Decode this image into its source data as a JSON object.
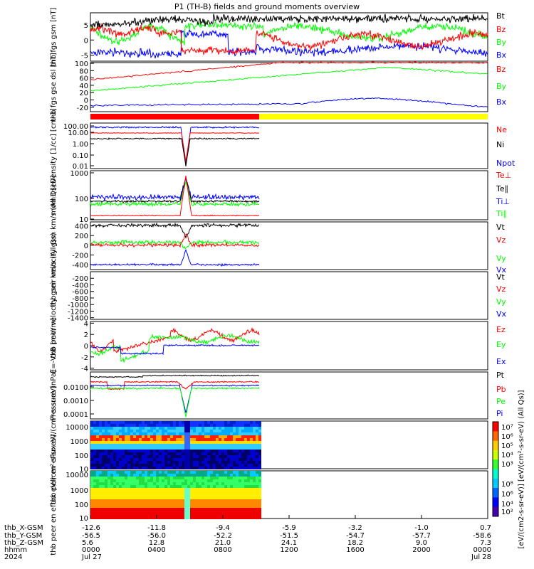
{
  "title": "P1 (TH-B) fields and ground moments overview",
  "colors": {
    "black": "#000000",
    "red": "#ff0000",
    "green": "#00ff00",
    "blue": "#0000ff",
    "yellow": "#ffff00"
  },
  "chart_data": [
    {
      "id": "fgs",
      "type": "line",
      "ylabel": "thb fgs gsm [nT]",
      "ylim": [
        -7,
        9
      ],
      "ticks": [
        5,
        0,
        -5
      ],
      "series": [
        {
          "name": "Bt",
          "color": "#000000"
        },
        {
          "name": "Bz",
          "color": "#ff0000"
        },
        {
          "name": "By",
          "color": "#00ff00"
        },
        {
          "name": "Bx",
          "color": "#0000ff"
        }
      ]
    },
    {
      "id": "fgs_dsl",
      "type": "line",
      "ylabel": "thb fgs gse dsl [nT]",
      "ylim": [
        -32,
        102
      ],
      "ticks": [
        100,
        80,
        60,
        40,
        20,
        0,
        -20
      ],
      "series": [
        {
          "name": "Bz",
          "color": "#ff0000"
        },
        {
          "name": "By",
          "color": "#00ff00"
        },
        {
          "name": "Bx",
          "color": "#0000ff"
        }
      ]
    },
    {
      "id": "density",
      "type": "line",
      "ylabel": "Density [1/cc] [cm-3]",
      "scale": "log",
      "ticks": [
        "100.00",
        "10.00",
        "1.00",
        "0.10",
        "0.01"
      ],
      "series": [
        {
          "name": "Ne",
          "color": "#ff0000"
        },
        {
          "name": "Ni",
          "color": "#000000"
        },
        {
          "name": "Npot",
          "color": "#0000ff"
        }
      ]
    },
    {
      "id": "temp",
      "type": "line",
      "ylabel": "mom3 [eV]",
      "scale": "log",
      "ticks": [
        "1000",
        "100",
        "10"
      ],
      "series": [
        {
          "name": "Te⊥",
          "color": "#ff0000"
        },
        {
          "name": "Te∥",
          "color": "#000000"
        },
        {
          "name": "Ti⊥",
          "color": "#0000ff"
        },
        {
          "name": "Ti∥",
          "color": "#00ff00"
        }
      ]
    },
    {
      "id": "peir_vel",
      "type": "line",
      "ylabel": "thb peir velocity gsm km/s (All Qs)",
      "ylim": [
        -500,
        480
      ],
      "ticks": [
        400,
        200,
        0,
        -200,
        -400
      ],
      "series": [
        {
          "name": "Vt",
          "color": "#000000"
        },
        {
          "name": "Vz",
          "color": "#ff0000"
        },
        {
          "name": "Vy",
          "color": "#00ff00"
        },
        {
          "name": "Vx",
          "color": "#0000ff"
        }
      ]
    },
    {
      "id": "peer_vel",
      "type": "line",
      "ylabel": "thb peer velocity gsm km/s (All Qs)",
      "ylim": [
        -1450,
        0
      ],
      "ticks": [
        -200,
        -400,
        -600,
        -800,
        -1000,
        -1200,
        -1400
      ],
      "series": [
        {
          "name": "Vt",
          "color": "#000000"
        },
        {
          "name": "Vz",
          "color": "#ff0000"
        },
        {
          "name": "Vy",
          "color": "#00ff00"
        },
        {
          "name": "Vx",
          "color": "#0000ff"
        }
      ]
    },
    {
      "id": "efield",
      "type": "line",
      "ylabel": "E=-VxB [mV/m]",
      "ylim": [
        -4.3,
        4.3
      ],
      "ticks": [
        4,
        2,
        0,
        -2,
        -4
      ],
      "series": [
        {
          "name": "Ez",
          "color": "#ff0000"
        },
        {
          "name": "Ey",
          "color": "#00ff00"
        },
        {
          "name": "Ex",
          "color": "#0000ff"
        }
      ]
    },
    {
      "id": "pressure",
      "type": "line",
      "ylabel": "Pressure [nPa]",
      "scale": "log",
      "ticks": [
        "0.0100",
        "0.0010",
        "0.0001"
      ],
      "series": [
        {
          "name": "Pt",
          "color": "#000000"
        },
        {
          "name": "Pb",
          "color": "#ff0000"
        },
        {
          "name": "Pe",
          "color": "#00ff00"
        },
        {
          "name": "Pi",
          "color": "#0000ff"
        }
      ]
    },
    {
      "id": "peir_spec",
      "type": "heatmap",
      "ylabel": "thb peir en eflux eV/(cm²-s-sr-eV)",
      "scale": "log",
      "ticks": [
        "10000",
        "1000",
        "100",
        "10"
      ]
    },
    {
      "id": "peer_spec",
      "type": "heatmap",
      "ylabel": "thb peer en eflux eV/(cm²-s-sr-eV)",
      "scale": "log",
      "ticks": [
        "10000",
        "1000",
        "100",
        "10"
      ]
    }
  ],
  "colorbar": {
    "label": "[eV/(cm2-s-sr-eV)]  [eV/(cm²-s-sr-eV) (All Qs)]",
    "upper_ticks": [
      "10⁷",
      "10⁶",
      "10⁵",
      "10⁴",
      "10³"
    ],
    "lower_ticks": [
      "10⁸",
      "10⁶",
      "10⁴",
      "10²"
    ]
  },
  "xaxis": {
    "rows": [
      {
        "label": "thb_X-GSM",
        "values": [
          "-12.6",
          "-11.8",
          "-9.4",
          "-5.9",
          "-3.2",
          "-1.0",
          "0.7"
        ]
      },
      {
        "label": "thb_Y-GSM",
        "values": [
          "-56.5",
          "-56.0",
          "-52.2",
          "-51.5",
          "-54.7",
          "-57.7",
          "-58.6"
        ]
      },
      {
        "label": "thb_Z-GSM",
        "values": [
          "5.6",
          "12.8",
          "21.0",
          "24.1",
          "18.2",
          "9.0",
          "7.3"
        ]
      },
      {
        "label": "hhmm",
        "values": [
          "0000",
          "0400",
          "0800",
          "1200",
          "1600",
          "2000",
          "0000"
        ]
      },
      {
        "label": "2024",
        "values": [
          "Jul 27",
          "",
          "",
          "",
          "",
          "",
          "Jul 28"
        ]
      }
    ]
  }
}
